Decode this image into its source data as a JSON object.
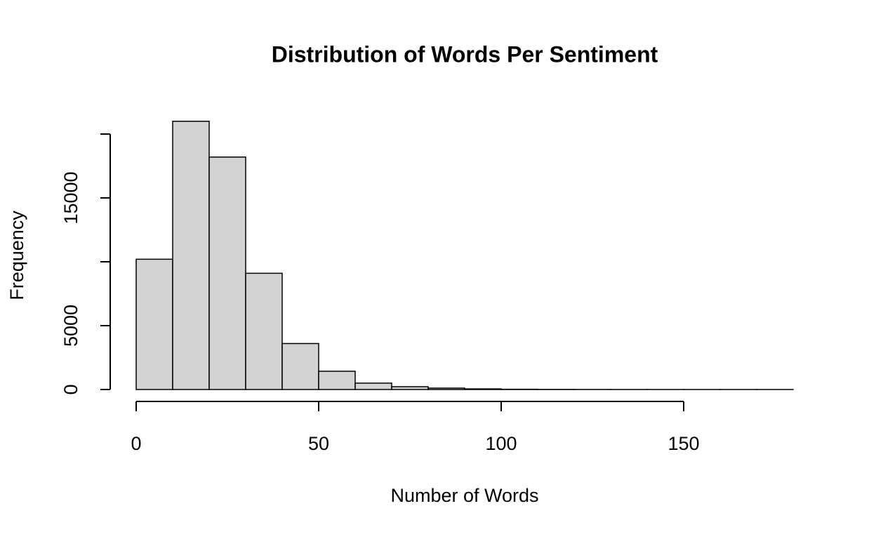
{
  "chart_data": {
    "type": "histogram",
    "title": "Distribution of Words Per Sentiment",
    "x_label": "Number of Words",
    "y_label": "Frequency",
    "bins": [
      0,
      10,
      20,
      30,
      40,
      50,
      60,
      70,
      80,
      90,
      100,
      110,
      120,
      130,
      140,
      150,
      160,
      170,
      180
    ],
    "values": [
      10200,
      21000,
      18200,
      9100,
      3600,
      1430,
      500,
      220,
      110,
      50,
      20,
      10,
      5,
      3,
      2,
      1,
      1,
      1
    ],
    "color": "#d3d3d3",
    "xlim": [
      0,
      180
    ],
    "ylim": [
      0,
      21000
    ],
    "xticks": [
      0,
      50,
      100,
      150
    ],
    "yticks": [
      0,
      5000,
      15000
    ],
    "yticks_unlabeled": [
      10000,
      20000
    ]
  }
}
